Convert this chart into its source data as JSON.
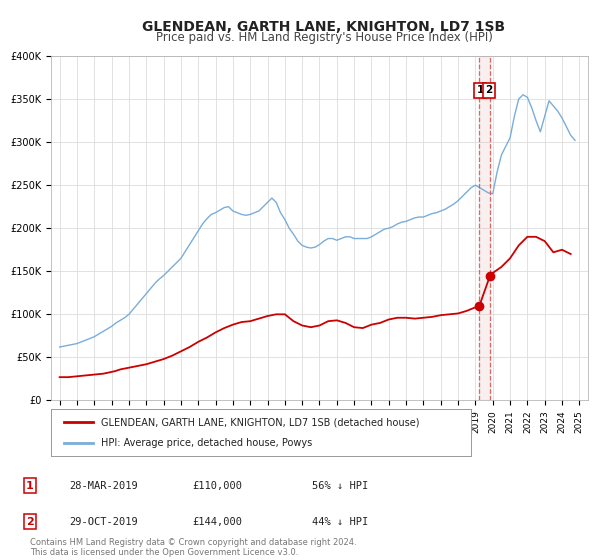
{
  "title": "GLENDEAN, GARTH LANE, KNIGHTON, LD7 1SB",
  "subtitle": "Price paid vs. HM Land Registry's House Price Index (HPI)",
  "title_fontsize": 10,
  "subtitle_fontsize": 8.5,
  "background_color": "#ffffff",
  "plot_bg_color": "#ffffff",
  "grid_color": "#dddddd",
  "legend_label_red": "GLENDEAN, GARTH LANE, KNIGHTON, LD7 1SB (detached house)",
  "legend_label_blue": "HPI: Average price, detached house, Powys",
  "red_color": "#cc0000",
  "blue_color": "#7aadda",
  "vline_color": "#dd4444",
  "marker1_date": 2019.23,
  "marker1_red_val": 110000,
  "marker2_date": 2019.83,
  "marker2_red_val": 144000,
  "table_rows": [
    [
      "1",
      "28-MAR-2019",
      "£110,000",
      "56% ↓ HPI"
    ],
    [
      "2",
      "29-OCT-2019",
      "£144,000",
      "44% ↓ HPI"
    ]
  ],
  "footer_text": "Contains HM Land Registry data © Crown copyright and database right 2024.\nThis data is licensed under the Open Government Licence v3.0.",
  "ylim": [
    0,
    400000
  ],
  "yticks": [
    0,
    50000,
    100000,
    150000,
    200000,
    250000,
    300000,
    350000,
    400000
  ],
  "xlim_start": 1994.5,
  "xlim_end": 2025.5,
  "xticks": [
    1995,
    1996,
    1997,
    1998,
    1999,
    2000,
    2001,
    2002,
    2003,
    2004,
    2005,
    2006,
    2007,
    2008,
    2009,
    2010,
    2011,
    2012,
    2013,
    2014,
    2015,
    2016,
    2017,
    2018,
    2019,
    2020,
    2021,
    2022,
    2023,
    2024,
    2025
  ],
  "hpi_x": [
    1995.0,
    1995.25,
    1995.5,
    1995.75,
    1996.0,
    1996.25,
    1996.5,
    1996.75,
    1997.0,
    1997.25,
    1997.5,
    1997.75,
    1998.0,
    1998.25,
    1998.5,
    1998.75,
    1999.0,
    1999.25,
    1999.5,
    1999.75,
    2000.0,
    2000.25,
    2000.5,
    2000.75,
    2001.0,
    2001.25,
    2001.5,
    2001.75,
    2002.0,
    2002.25,
    2002.5,
    2002.75,
    2003.0,
    2003.25,
    2003.5,
    2003.75,
    2004.0,
    2004.25,
    2004.5,
    2004.75,
    2005.0,
    2005.25,
    2005.5,
    2005.75,
    2006.0,
    2006.25,
    2006.5,
    2006.75,
    2007.0,
    2007.25,
    2007.5,
    2007.75,
    2008.0,
    2008.25,
    2008.5,
    2008.75,
    2009.0,
    2009.25,
    2009.5,
    2009.75,
    2010.0,
    2010.25,
    2010.5,
    2010.75,
    2011.0,
    2011.25,
    2011.5,
    2011.75,
    2012.0,
    2012.25,
    2012.5,
    2012.75,
    2013.0,
    2013.25,
    2013.5,
    2013.75,
    2014.0,
    2014.25,
    2014.5,
    2014.75,
    2015.0,
    2015.25,
    2015.5,
    2015.75,
    2016.0,
    2016.25,
    2016.5,
    2016.75,
    2017.0,
    2017.25,
    2017.5,
    2017.75,
    2018.0,
    2018.25,
    2018.5,
    2018.75,
    2019.0,
    2019.25,
    2019.5,
    2019.75,
    2020.0,
    2020.25,
    2020.5,
    2020.75,
    2021.0,
    2021.25,
    2021.5,
    2021.75,
    2022.0,
    2022.25,
    2022.5,
    2022.75,
    2023.0,
    2023.25,
    2023.5,
    2023.75,
    2024.0,
    2024.25,
    2024.5,
    2024.75
  ],
  "hpi_y": [
    62000,
    63000,
    64000,
    65000,
    66000,
    68000,
    70000,
    72000,
    74000,
    77000,
    80000,
    83000,
    86000,
    90000,
    93000,
    96000,
    100000,
    106000,
    112000,
    118000,
    124000,
    130000,
    136000,
    141000,
    145000,
    150000,
    155000,
    160000,
    165000,
    173000,
    181000,
    189000,
    197000,
    205000,
    211000,
    216000,
    218000,
    221000,
    224000,
    225000,
    220000,
    218000,
    216000,
    215000,
    216000,
    218000,
    220000,
    225000,
    230000,
    235000,
    230000,
    218000,
    210000,
    200000,
    193000,
    185000,
    180000,
    178000,
    177000,
    178000,
    181000,
    185000,
    188000,
    188000,
    186000,
    188000,
    190000,
    190000,
    188000,
    188000,
    188000,
    188000,
    190000,
    193000,
    196000,
    199000,
    200000,
    202000,
    205000,
    207000,
    208000,
    210000,
    212000,
    213000,
    213000,
    215000,
    217000,
    218000,
    220000,
    222000,
    225000,
    228000,
    232000,
    237000,
    242000,
    247000,
    250000,
    247000,
    244000,
    241000,
    240000,
    265000,
    285000,
    295000,
    305000,
    330000,
    350000,
    355000,
    352000,
    340000,
    325000,
    312000,
    330000,
    348000,
    342000,
    336000,
    328000,
    318000,
    308000,
    302000
  ],
  "red_x": [
    1995.0,
    1995.5,
    1996.0,
    1996.5,
    1997.0,
    1997.5,
    1997.75,
    1998.2,
    1998.5,
    1999.0,
    1999.5,
    2000.0,
    2000.5,
    2001.0,
    2001.5,
    2002.0,
    2002.5,
    2003.0,
    2003.5,
    2004.0,
    2004.5,
    2005.0,
    2005.5,
    2006.0,
    2006.5,
    2007.0,
    2007.5,
    2008.0,
    2008.5,
    2009.0,
    2009.5,
    2010.0,
    2010.5,
    2011.0,
    2011.5,
    2012.0,
    2012.5,
    2013.0,
    2013.5,
    2014.0,
    2014.5,
    2015.0,
    2015.5,
    2016.0,
    2016.5,
    2017.0,
    2017.5,
    2018.0,
    2018.5,
    2019.23,
    2019.83,
    2020.0,
    2020.5,
    2021.0,
    2021.5,
    2022.0,
    2022.5,
    2023.0,
    2023.5,
    2024.0,
    2024.5
  ],
  "red_y": [
    27000,
    27000,
    28000,
    29000,
    30000,
    31000,
    32000,
    34000,
    36000,
    38000,
    40000,
    42000,
    45000,
    48000,
    52000,
    57000,
    62000,
    68000,
    73000,
    79000,
    84000,
    88000,
    91000,
    92000,
    95000,
    98000,
    100000,
    100000,
    92000,
    87000,
    85000,
    87000,
    92000,
    93000,
    90000,
    85000,
    84000,
    88000,
    90000,
    94000,
    96000,
    96000,
    95000,
    96000,
    97000,
    99000,
    100000,
    101000,
    104000,
    110000,
    144000,
    148000,
    155000,
    165000,
    180000,
    190000,
    190000,
    185000,
    172000,
    175000,
    170000
  ]
}
